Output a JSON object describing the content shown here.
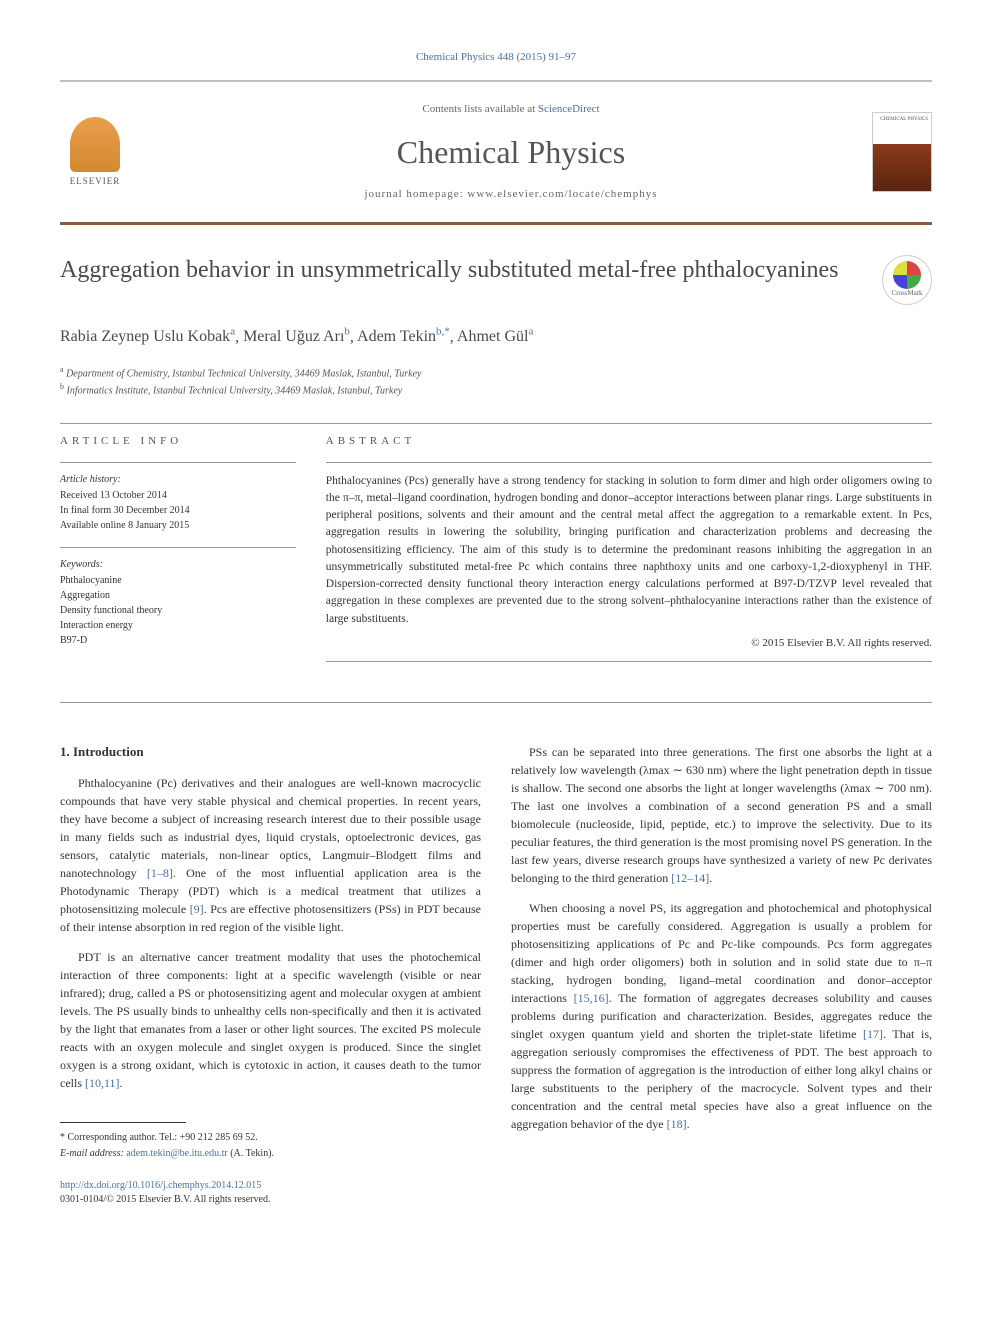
{
  "citation": "Chemical Physics 448 (2015) 91–97",
  "header": {
    "contents_prefix": "Contents lists available at ",
    "contents_link": "ScienceDirect",
    "journal_name": "Chemical Physics",
    "homepage_prefix": "journal homepage: ",
    "homepage_url": "www.elsevier.com/locate/chemphys",
    "elsevier_label": "ELSEVIER",
    "cover_label": "CHEMICAL PHYSICS"
  },
  "crossmark_label": "CrossMark",
  "title": "Aggregation behavior in unsymmetrically substituted metal-free phthalocyanines",
  "authors": [
    {
      "name": "Rabia Zeynep Uslu Kobak",
      "aff": "a"
    },
    {
      "name": "Meral Uğuz Arı",
      "aff": "b"
    },
    {
      "name": "Adem Tekin",
      "aff": "b,*"
    },
    {
      "name": "Ahmet Gül",
      "aff": "a"
    }
  ],
  "affiliations": [
    {
      "sup": "a",
      "text": "Department of Chemistry, Istanbul Technical University, 34469 Maslak, Istanbul, Turkey"
    },
    {
      "sup": "b",
      "text": "Informatics Institute, Istanbul Technical University, 34469 Maslak, Istanbul, Turkey"
    }
  ],
  "info": {
    "header": "ARTICLE INFO",
    "history_title": "Article history:",
    "history": [
      "Received 13 October 2014",
      "In final form 30 December 2014",
      "Available online 8 January 2015"
    ],
    "keywords_title": "Keywords:",
    "keywords": [
      "Phthalocyanine",
      "Aggregation",
      "Density functional theory",
      "Interaction energy",
      "B97-D"
    ]
  },
  "abstract": {
    "header": "ABSTRACT",
    "text": "Phthalocyanines (Pcs) generally have a strong tendency for stacking in solution to form dimer and high order oligomers owing to the π–π, metal–ligand coordination, hydrogen bonding and donor–acceptor interactions between planar rings. Large substituents in peripheral positions, solvents and their amount and the central metal affect the aggregation to a remarkable extent. In Pcs, aggregation results in lowering the solubility, bringing purification and characterization problems and decreasing the photosensitizing efficiency. The aim of this study is to determine the predominant reasons inhibiting the aggregation in an unsymmetrically substituted metal-free Pc which contains three naphthoxy units and one carboxy-1,2-dioxyphenyl in THF. Dispersion-corrected density functional theory interaction energy calculations performed at B97-D/TZVP level revealed that aggregation in these complexes are prevented due to the strong solvent–phthalocyanine interactions rather than the existence of large substituents.",
    "copyright": "© 2015 Elsevier B.V. All rights reserved."
  },
  "body": {
    "section1_title": "1. Introduction",
    "p1": "Phthalocyanine (Pc) derivatives and their analogues are well-known macrocyclic compounds that have very stable physical and chemical properties. In recent years, they have become a subject of increasing research interest due to their possible usage in many fields such as industrial dyes, liquid crystals, optoelectronic devices, gas sensors, catalytic materials, non-linear optics, Langmuir–Blodgett films and nanotechnology ",
    "ref1": "[1–8]",
    "p1b": ". One of the most influential application area is the Photodynamic Therapy (PDT) which is a medical treatment that utilizes a photosensitizing molecule ",
    "ref2": "[9]",
    "p1c": ". Pcs are effective photosensitizers (PSs) in PDT because of their intense absorption in red region of the visible light.",
    "p2": "PDT is an alternative cancer treatment modality that uses the photochemical interaction of three components: light at a specific wavelength (visible or near infrared); drug, called a PS or photosensitizing agent and molecular oxygen at ambient levels. The PS usually binds to unhealthy cells non-specifically and then it is activated by the light that emanates from a laser or other light sources. The excited PS molecule reacts with an oxygen molecule and singlet oxygen is produced. Since the singlet oxygen is a strong oxidant, which is cytotoxic in action, it causes death to the tumor cells ",
    "ref3": "[10,11]",
    "p2b": ".",
    "p3a": "PSs can be separated into three generations. The first one absorbs the light at a relatively low wavelength (λmax ∼ 630 nm) where the light penetration depth in tissue is shallow. The second one absorbs the light at longer wavelengths (λmax ∼ 700 nm). The last one involves a combination of a second generation PS and a small biomolecule (nucleoside, lipid, peptide, etc.) to improve the selectivity. Due to its peculiar features, the third generation is the most promising novel PS generation. In the last few years, diverse research groups have synthesized a variety of new Pc derivates belonging to the third generation ",
    "ref4": "[12–14]",
    "p3b": ".",
    "p4a": "When choosing a novel PS, its aggregation and photochemical and photophysical properties must be carefully considered. Aggregation is usually a problem for photosensitizing applications of Pc and Pc-like compounds. Pcs form aggregates (dimer and high order oligomers) both in solution and in solid state due to π–π stacking, hydrogen bonding, ligand–metal coordination and donor–acceptor interactions ",
    "ref5": "[15,16]",
    "p4b": ". The formation of aggregates decreases solubility and causes problems during purification and characterization. Besides, aggregates reduce the singlet oxygen quantum yield and shorten the triplet-state lifetime ",
    "ref6": "[17]",
    "p4c": ". That is, aggregation seriously compromises the effectiveness of PDT. The best approach to suppress the formation of aggregation is the introduction of either long alkyl chains or large substituents to the periphery of the macrocycle. Solvent types and their concentration and the central metal species have also a great influence on the aggregation behavior of the dye ",
    "ref7": "[18]",
    "p4d": "."
  },
  "footer": {
    "corresponding": "* Corresponding author. Tel.: +90 212 285 69 52.",
    "email_label": "E-mail address: ",
    "email": "adem.tekin@be.itu.edu.tr",
    "email_suffix": " (A. Tekin).",
    "doi": "http://dx.doi.org/10.1016/j.chemphys.2014.12.015",
    "issn_copyright": "0301-0104/© 2015 Elsevier B.V. All rights reserved."
  }
}
